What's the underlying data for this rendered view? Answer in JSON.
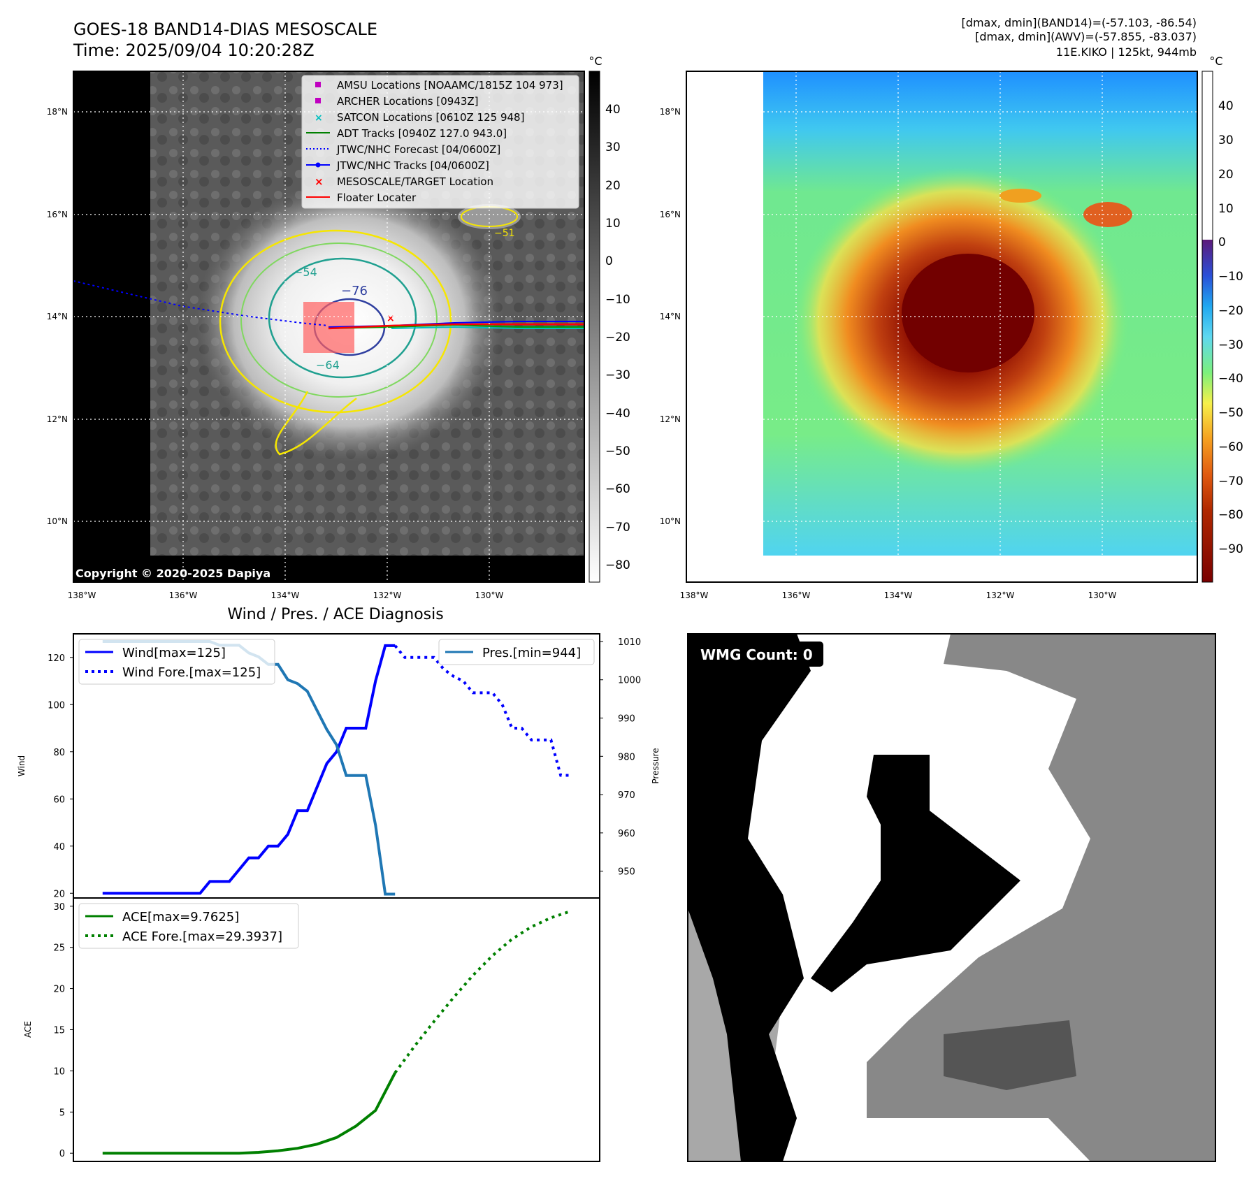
{
  "header": {
    "title_line1": "GOES-18 BAND14-DIAS MESOSCALE",
    "title_line2": "Time: 2025/09/04 10:20:28Z",
    "stats_line1": "[dmax, dmin](BAND14)=(-57.103, -86.54)",
    "stats_line2": "[dmax, dmin](AWV)=(-57.855, -83.037)",
    "stats_line3": "11E.KIKO | 125kt, 944mb"
  },
  "colors": {
    "wind": "#0000ff",
    "pressure": "#1f77b4",
    "ace": "#008000",
    "floater": "#ff0000",
    "amsu": "#c000c0",
    "satcon": "#00bfbf"
  },
  "map_left": {
    "copyright": "Copyright © 2020-2025 Dapiya",
    "unit": "°C",
    "colorbar_ticks": [
      "40",
      "30",
      "20",
      "10",
      "0",
      "−10",
      "−20",
      "−30",
      "−40",
      "−50",
      "−60",
      "−70",
      "−80"
    ],
    "contour_labels": [
      "−76",
      "−54",
      "−64",
      "−51"
    ],
    "legend": [
      {
        "label": "AMSU Locations [NOAAMC/1815Z 104 973]"
      },
      {
        "label": "ARCHER Locations [0943Z]"
      },
      {
        "label": "SATCON Locations [0610Z 125 948]"
      },
      {
        "label": "ADT Tracks [0940Z 127.0 943.0]"
      },
      {
        "label": "JTWC/NHC Forecast [04/0600Z]"
      },
      {
        "label": "JTWC/NHC Tracks [04/0600Z]"
      },
      {
        "label": "MESOSCALE/TARGET Location"
      },
      {
        "label": "Floater Locater"
      }
    ]
  },
  "map_right": {
    "unit": "°C",
    "colorbar_ticks": [
      "40",
      "30",
      "20",
      "10",
      "0",
      "−10",
      "−20",
      "−30",
      "−40",
      "−50",
      "−60",
      "−70",
      "−80",
      "−90"
    ]
  },
  "map_axes": {
    "lat_labels": [
      "18°N",
      "16°N",
      "14°N",
      "12°N",
      "10°N"
    ],
    "lon_labels": [
      "138°W",
      "136°W",
      "134°W",
      "132°W",
      "130°W"
    ]
  },
  "diagnosis": {
    "title": "Wind / Pres. / ACE Diagnosis",
    "wind_ylabel": "Wind",
    "pressure_ylabel": "Pressure",
    "ace_ylabel": "ACE",
    "legend_wind": "Wind[max=125]",
    "legend_wind_fore": "Wind Fore.[max=125]",
    "legend_pres": "Pres.[min=944]",
    "legend_ace": "ACE[max=9.7625]",
    "legend_ace_fore": "ACE Fore.[max=29.3937]"
  },
  "wmg": {
    "label": "WMG Count: 0"
  },
  "chart_data": [
    {
      "type": "line",
      "panel": "wind-pressure",
      "x": [
        0,
        1,
        2,
        3,
        4,
        5,
        6,
        7,
        8,
        9,
        10,
        11,
        12,
        13,
        14,
        15,
        16,
        17,
        18,
        19,
        20,
        21,
        22,
        23,
        24,
        25,
        26,
        27,
        28,
        29,
        30,
        31,
        32,
        33,
        34,
        35,
        36,
        37,
        38,
        39,
        40,
        41,
        42,
        43,
        44,
        45,
        46,
        47,
        48
      ],
      "series": [
        {
          "name": "Wind[max=125]",
          "axis": "left",
          "x": [
            0,
            1,
            2,
            3,
            4,
            5,
            6,
            7,
            8,
            9,
            10,
            11,
            12,
            13,
            14,
            15,
            16,
            17,
            18,
            19,
            20,
            21,
            22,
            23,
            24,
            25,
            26,
            27,
            28,
            29,
            30
          ],
          "values": [
            20,
            20,
            20,
            20,
            20,
            20,
            20,
            20,
            20,
            20,
            20,
            25,
            25,
            25,
            30,
            35,
            35,
            40,
            40,
            45,
            55,
            55,
            65,
            75,
            80,
            90,
            90,
            90,
            110,
            125,
            125
          ]
        },
        {
          "name": "Wind Fore.[max=125]",
          "axis": "left",
          "style": "dotted",
          "x": [
            30,
            31,
            32,
            33,
            34,
            35,
            36,
            37,
            38,
            39,
            40,
            41,
            42,
            43,
            44,
            45,
            46,
            47,
            48
          ],
          "values": [
            125,
            120,
            120,
            120,
            120,
            115,
            112,
            110,
            105,
            105,
            105,
            100,
            90,
            90,
            85,
            85,
            85,
            70,
            70
          ]
        },
        {
          "name": "Pres.[min=944]",
          "axis": "right",
          "x": [
            0,
            1,
            2,
            3,
            4,
            5,
            6,
            7,
            8,
            9,
            10,
            11,
            12,
            13,
            14,
            15,
            16,
            17,
            18,
            19,
            20,
            21,
            22,
            23,
            24,
            25,
            26,
            27,
            28,
            29,
            30
          ],
          "values": [
            1010,
            1010,
            1010,
            1010,
            1010,
            1010,
            1010,
            1010,
            1010,
            1010,
            1010,
            1010,
            1009,
            1009,
            1009,
            1007,
            1006,
            1004,
            1004,
            1000,
            999,
            997,
            992,
            987,
            983,
            975,
            975,
            975,
            962,
            944,
            944
          ]
        }
      ],
      "ylabel": "Wind",
      "ylim": [
        18,
        130
      ],
      "yticks": [
        20,
        40,
        60,
        80,
        100,
        120
      ],
      "ylabel_right": "Pressure",
      "ylim_right": [
        943,
        1012
      ],
      "yticks_right": [
        950,
        960,
        970,
        980,
        990,
        1000,
        1010
      ]
    },
    {
      "type": "line",
      "panel": "ace",
      "series": [
        {
          "name": "ACE[max=9.7625]",
          "x": [
            0,
            2,
            4,
            6,
            8,
            10,
            12,
            14,
            16,
            18,
            20,
            22,
            24,
            26,
            28,
            30
          ],
          "values": [
            0,
            0,
            0,
            0,
            0,
            0,
            0,
            0,
            0.1,
            0.3,
            0.6,
            1.1,
            1.9,
            3.3,
            5.2,
            9.76
          ]
        },
        {
          "name": "ACE Fore.[max=29.3937]",
          "style": "dotted",
          "x": [
            30,
            32,
            34,
            36,
            38,
            40,
            42,
            44,
            46,
            48
          ],
          "values": [
            9.76,
            13,
            16,
            18.9,
            21.6,
            24,
            26,
            27.5,
            28.6,
            29.39
          ]
        }
      ],
      "ylabel": "ACE",
      "ylim": [
        -1,
        31
      ],
      "yticks": [
        0,
        5,
        10,
        15,
        20,
        25,
        30
      ]
    }
  ]
}
